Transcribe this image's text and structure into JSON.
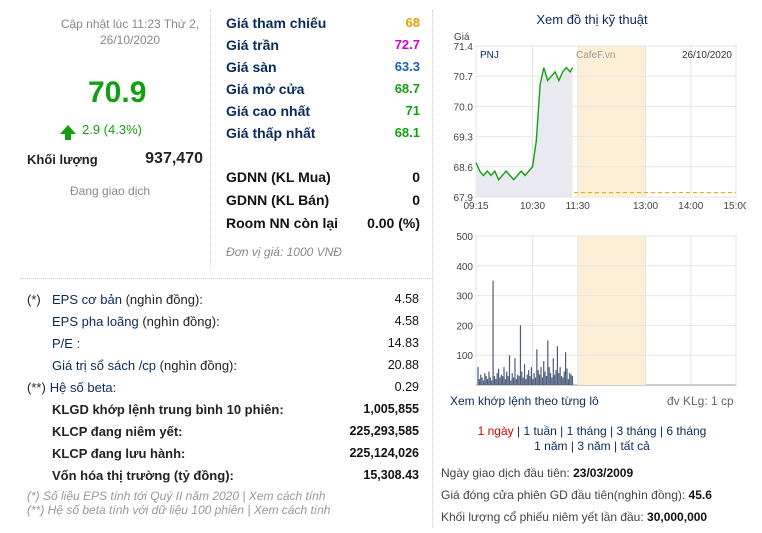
{
  "summary": {
    "updated": "Cập nhật lúc 11:23 Thứ 2, 26/10/2020",
    "price": "70.9",
    "change": "2.9 (4.3%)",
    "volume_label": "Khối lượng",
    "volume_value": "937,470",
    "trading_status": "Đang giao dịch",
    "color_up": "#12a012"
  },
  "prices": [
    {
      "label": "Giá tham chiếu",
      "value": "68",
      "color": "#e6a100"
    },
    {
      "label": "Giá trần",
      "value": "72.7",
      "color": "#d400d4"
    },
    {
      "label": "Giá sàn",
      "value": "63.3",
      "color": "#1a5fb4"
    },
    {
      "label": "Giá mở cửa",
      "value": "68.7",
      "color": "#12a012"
    },
    {
      "label": "Giá cao nhất",
      "value": "71",
      "color": "#12a012"
    },
    {
      "label": "Giá thấp nhất",
      "value": "68.1",
      "color": "#12a012"
    }
  ],
  "foreign": [
    {
      "label": "GDNN (KL Mua)",
      "value": "0"
    },
    {
      "label": "GDNN (KL Bán)",
      "value": "0"
    },
    {
      "label": "Room NN còn lại",
      "value": "0.00 (%)"
    }
  ],
  "unit_note": "Đơn vị giá: 1000 VNĐ",
  "stats": [
    {
      "prefix": "(*)",
      "label": "EPS cơ bản",
      "suffix": " (nghìn đồng):",
      "value": "4.58",
      "bold": false
    },
    {
      "prefix": "",
      "label": "EPS pha loãng",
      "suffix": " (nghìn đồng):",
      "value": "4.58",
      "bold": false
    },
    {
      "prefix": "",
      "label": "P/E :",
      "suffix": "",
      "value": "14.83",
      "bold": false
    },
    {
      "prefix": "",
      "label": "Giá trị sổ sách /cp",
      "suffix": " (nghìn đồng):",
      "value": "20.88",
      "bold": false
    },
    {
      "prefix": "(**)",
      "label": "Hệ số beta:",
      "suffix": "",
      "value": "0.29",
      "bold": false
    },
    {
      "prefix": "",
      "label": "KLGD khớp lệnh trung bình 10 phiên:",
      "suffix": "",
      "value": "1,005,855",
      "bold": true
    },
    {
      "prefix": "",
      "label": "KLCP đang niêm yết:",
      "suffix": "",
      "value": "225,293,585",
      "bold": true
    },
    {
      "prefix": "",
      "label": "KLCP đang lưu hành:",
      "suffix": "",
      "value": "225,124,026",
      "bold": true
    },
    {
      "prefix": "",
      "label": "Vốn hóa thị trường",
      "suffix": " (tỷ đồng):",
      "value": "15,308.43",
      "bold": true
    }
  ],
  "footnotes": [
    "(*) Số liệu EPS tính tới Quý II năm 2020 | Xem cách tính",
    "(**) Hệ số beta tính với dữ liệu 100 phiên | Xem cách tính"
  ],
  "chart_panel": {
    "title": "Xem đồ thị kỹ thuật",
    "link": "Xem khớp lệnh theo từng lô",
    "unit": "đv KLg: 1 cp",
    "periods_row1": [
      "1 ngày",
      "1 tuần",
      "1 tháng",
      "3 tháng",
      "6 tháng"
    ],
    "periods_row2": [
      "1 năm",
      "3 năm",
      "tất cả"
    ],
    "active_period": "1 ngày"
  },
  "listing_info": [
    {
      "label": "Ngày giao dịch đầu tiên: ",
      "value": "23/03/2009"
    },
    {
      "label": "Giá đóng cửa phiên GD đầu tiên(nghìn đồng): ",
      "value": "45.6"
    },
    {
      "label": "Khối lượng cổ phiếu niêm yết lần đầu: ",
      "value": "30,000,000"
    }
  ],
  "chart_data": [
    {
      "type": "line",
      "symbol": "PNJ",
      "watermark": "CafeF.vn",
      "date": "26/10/2020",
      "ylabel": "Giá",
      "y_ticks": [
        "71.4",
        "70.7",
        "70.0",
        "69.3",
        "68.6",
        "67.9"
      ],
      "ylim": [
        67.9,
        71.4
      ],
      "x_ticks": [
        "09:15",
        "10:30",
        "11:30",
        "13:00",
        "14:00",
        "15:00"
      ],
      "x": [
        "09:15",
        "09:20",
        "09:25",
        "09:30",
        "09:35",
        "09:40",
        "09:45",
        "09:50",
        "09:55",
        "10:00",
        "10:05",
        "10:10",
        "10:15",
        "10:20",
        "10:25",
        "10:30",
        "10:35",
        "10:40",
        "10:45",
        "10:50",
        "10:55",
        "11:00",
        "11:05",
        "11:10",
        "11:15",
        "11:20",
        "11:23"
      ],
      "values": [
        68.7,
        68.5,
        68.4,
        68.5,
        68.4,
        68.5,
        68.3,
        68.4,
        68.5,
        68.4,
        68.3,
        68.4,
        68.5,
        68.4,
        68.5,
        68.6,
        69.2,
        70.5,
        70.9,
        70.6,
        70.7,
        70.8,
        70.6,
        70.8,
        70.9,
        70.8,
        70.9
      ]
    },
    {
      "type": "bar",
      "y_ticks": [
        "500",
        "400",
        "300",
        "200",
        "100"
      ],
      "ylim": [
        0,
        500
      ],
      "x_ticks": [],
      "values": [
        60,
        20,
        35,
        25,
        15,
        40,
        30,
        20,
        45,
        25,
        15,
        350,
        30,
        20,
        40,
        55,
        25,
        35,
        30,
        60,
        20,
        45,
        30,
        100,
        15,
        40,
        25,
        90,
        20,
        35,
        30,
        200,
        45,
        25,
        70,
        20,
        35,
        50,
        30,
        60,
        20,
        40,
        25,
        120,
        50,
        35,
        60,
        25,
        80,
        45,
        30,
        150,
        60,
        40,
        25,
        90,
        35,
        50,
        130,
        40,
        60,
        30,
        25,
        45,
        110,
        55,
        20,
        40,
        35,
        30
      ]
    }
  ]
}
